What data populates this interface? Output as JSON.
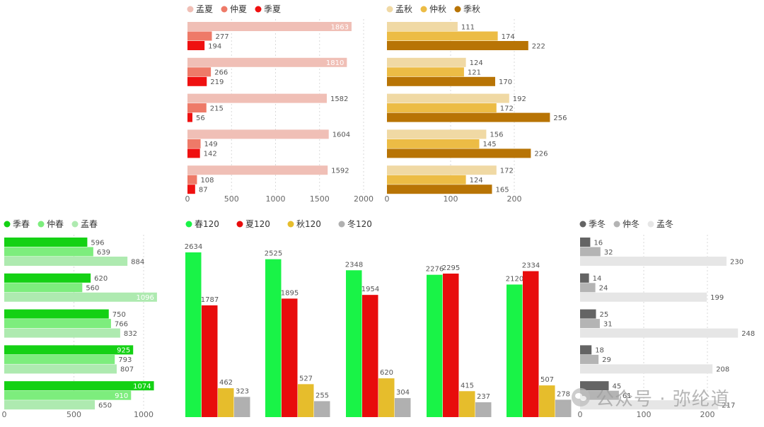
{
  "chart_data": [
    {
      "id": "summer",
      "type": "bar",
      "orientation": "horizontal",
      "groups": 5,
      "xlim": [
        0,
        2000
      ],
      "ticks": [
        0,
        500,
        1000,
        1500,
        2000
      ],
      "legend_position": "top-left",
      "series": [
        {
          "name": "孟夏",
          "color": "#f0bfb6",
          "values": [
            1863,
            1810,
            1582,
            1604,
            1592
          ]
        },
        {
          "name": "仲夏",
          "color": "#ee7a68",
          "values": [
            277,
            266,
            215,
            149,
            108
          ]
        },
        {
          "name": "季夏",
          "color": "#ef1010",
          "values": [
            194,
            219,
            56,
            142,
            87
          ]
        }
      ]
    },
    {
      "id": "autumn",
      "type": "bar",
      "orientation": "horizontal",
      "groups": 5,
      "xlim": [
        0,
        250
      ],
      "ticks": [
        0,
        100,
        200
      ],
      "legend_position": "top-left",
      "series": [
        {
          "name": "孟秋",
          "color": "#f0d9a4",
          "values": [
            111,
            124,
            192,
            156,
            172
          ]
        },
        {
          "name": "仲秋",
          "color": "#ecbc45",
          "values": [
            174,
            121,
            172,
            145,
            124
          ]
        },
        {
          "name": "季秋",
          "color": "#b87405",
          "values": [
            222,
            170,
            256,
            226,
            165
          ]
        }
      ]
    },
    {
      "id": "spring",
      "type": "bar",
      "orientation": "horizontal",
      "groups": 5,
      "xlim": [
        0,
        1100
      ],
      "ticks": [
        0,
        500,
        1000
      ],
      "legend_position": "top-left",
      "series": [
        {
          "name": "季春",
          "color": "#14d114",
          "values": [
            596,
            620,
            750,
            925,
            1074
          ]
        },
        {
          "name": "仲春",
          "color": "#7ded7d",
          "values": [
            639,
            560,
            766,
            793,
            910
          ]
        },
        {
          "name": "孟春",
          "color": "#aeeab0",
          "values": [
            884,
            1096,
            832,
            807,
            650
          ]
        }
      ]
    },
    {
      "id": "seasons120",
      "type": "bar",
      "orientation": "vertical",
      "groups": 5,
      "ylim": [
        0,
        2800
      ],
      "legend_position": "top-left",
      "series": [
        {
          "name": "春120",
          "color": "#19f347",
          "values": [
            2634,
            2525,
            2348,
            2276,
            2120
          ]
        },
        {
          "name": "夏120",
          "color": "#e80c0c",
          "values": [
            1787,
            1895,
            1954,
            2295,
            2334
          ]
        },
        {
          "name": "秋120",
          "color": "#e6bd2c",
          "values": [
            462,
            527,
            620,
            415,
            507
          ]
        },
        {
          "name": "冬120",
          "color": "#b0b0b0",
          "values": [
            323,
            255,
            304,
            237,
            278
          ]
        }
      ]
    },
    {
      "id": "winter",
      "type": "bar",
      "orientation": "horizontal",
      "groups": 5,
      "xlim": [
        0,
        250
      ],
      "ticks": [
        0,
        100,
        200
      ],
      "legend_position": "top-left",
      "series": [
        {
          "name": "季冬",
          "color": "#646464",
          "values": [
            16,
            14,
            25,
            18,
            45
          ]
        },
        {
          "name": "仲冬",
          "color": "#b4b4b4",
          "values": [
            32,
            24,
            31,
            29,
            61
          ]
        },
        {
          "name": "孟冬",
          "color": "#e6e6e6",
          "values": [
            230,
            199,
            248,
            208,
            217
          ]
        }
      ]
    }
  ],
  "watermark": {
    "text": "公众号 · 弥纶道",
    "icon": "wechat-icon"
  }
}
